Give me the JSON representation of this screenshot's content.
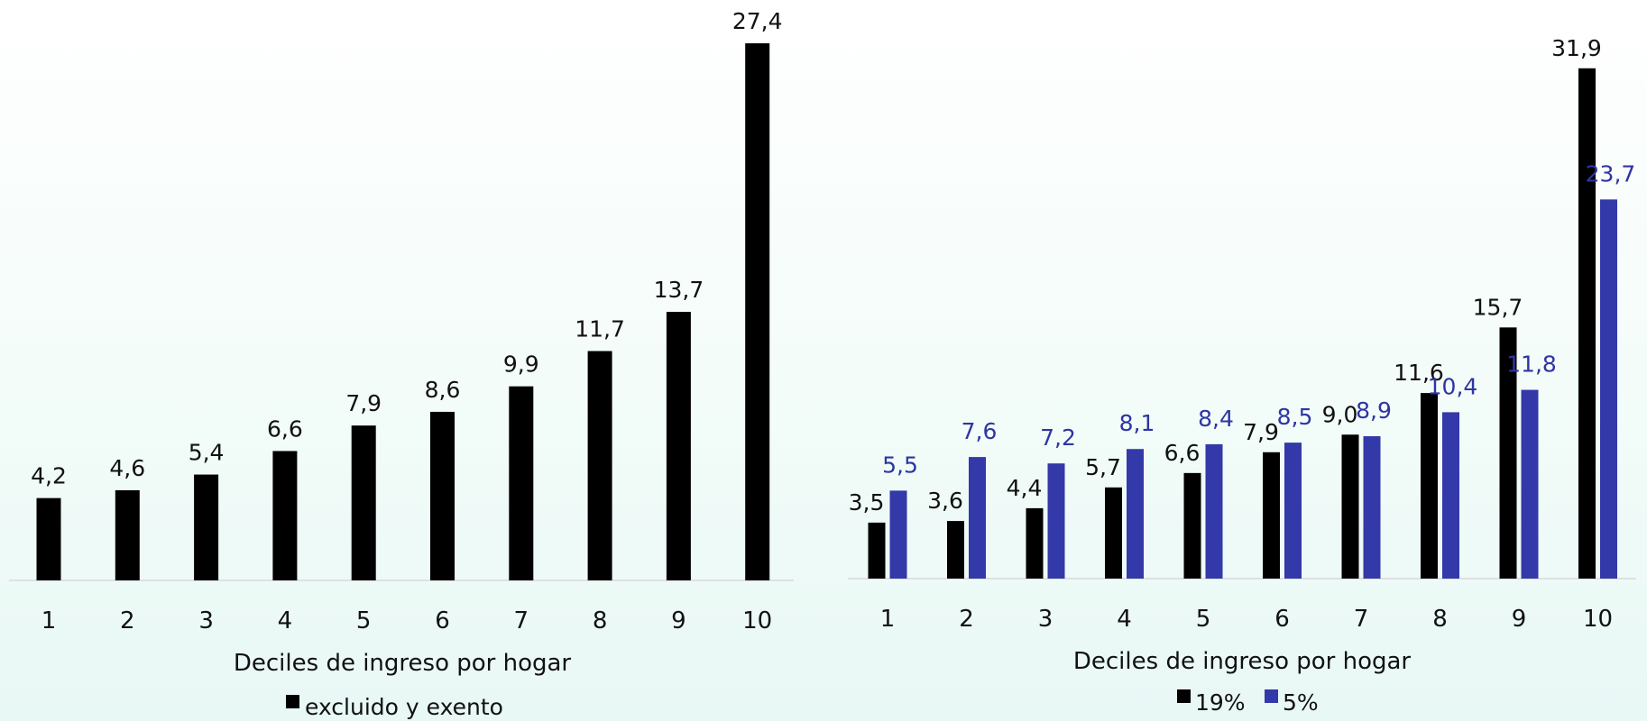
{
  "colors": {
    "black_series": "#000000",
    "blue_series": "#3339a8",
    "blue_label": "#2e35a3",
    "axis": "#d9d9d9",
    "text": "#111111"
  },
  "chart_data": [
    {
      "type": "bar",
      "xlabel": "Deciles de ingreso por hogar",
      "ylabel": "",
      "categories": [
        "1",
        "2",
        "3",
        "4",
        "5",
        "6",
        "7",
        "8",
        "9",
        "10"
      ],
      "series": [
        {
          "name": "excluido y exento",
          "color": "#000000",
          "values": [
            4.2,
            4.6,
            5.4,
            6.6,
            7.9,
            8.6,
            9.9,
            11.7,
            13.7,
            27.4
          ],
          "labels": [
            "4,2",
            "4,6",
            "5,4",
            "6,6",
            "7,9",
            "8,6",
            "9,9",
            "11,7",
            "13,7",
            "27,4"
          ]
        }
      ],
      "legend": "bottom",
      "grid": false
    },
    {
      "type": "bar",
      "xlabel": "Deciles de ingreso por hogar",
      "ylabel": "",
      "categories": [
        "1",
        "2",
        "3",
        "4",
        "5",
        "6",
        "7",
        "8",
        "9",
        "10"
      ],
      "series": [
        {
          "name": "19%",
          "color": "#000000",
          "values": [
            3.5,
            3.6,
            4.4,
            5.7,
            6.6,
            7.9,
            9.0,
            11.6,
            15.7,
            31.9
          ],
          "labels": [
            "3,5",
            "3,6",
            "4,4",
            "5,7",
            "6,6",
            "7,9",
            "9,0",
            "11,6",
            "15,7",
            "31,9"
          ]
        },
        {
          "name": "5%",
          "color": "#3339a8",
          "values": [
            5.5,
            7.6,
            7.2,
            8.1,
            8.4,
            8.5,
            8.9,
            10.4,
            11.8,
            23.7
          ],
          "labels": [
            "5,5",
            "7,6",
            "7,2",
            "8,1",
            "8,4",
            "8,5",
            "8,9",
            "10,4",
            "11,8",
            "23,7"
          ]
        }
      ],
      "legend": "bottom",
      "grid": false
    }
  ]
}
